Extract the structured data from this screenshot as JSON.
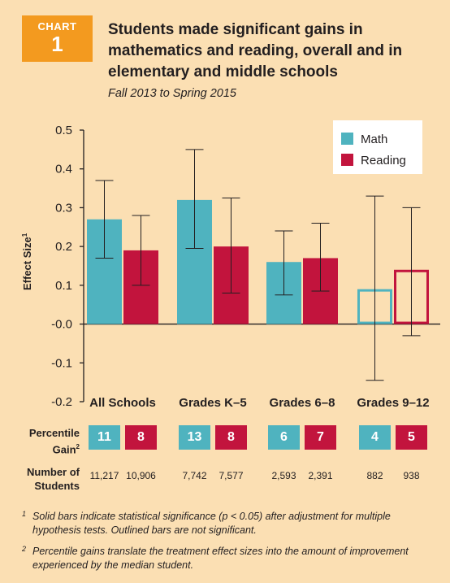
{
  "header": {
    "badge_label": "CHART",
    "badge_number": "1",
    "title": "Students made significant gains in mathematics and reading, overall and in elementary and middle schools",
    "subtitle": "Fall 2013 to Spring 2015"
  },
  "colors": {
    "math": "#4fb3bf",
    "reading": "#c2143d",
    "accent": "#f39a1f"
  },
  "chart_data": {
    "type": "bar",
    "categories": [
      "All Schools",
      "Grades K–5",
      "Grades 6–8",
      "Grades 9–12"
    ],
    "series": [
      {
        "name": "Math",
        "values": [
          0.27,
          0.32,
          0.16,
          0.09
        ],
        "error_low": [
          0.17,
          0.195,
          0.075,
          -0.145
        ],
        "error_high": [
          0.37,
          0.45,
          0.24,
          0.33
        ],
        "significant": [
          true,
          true,
          true,
          false
        ]
      },
      {
        "name": "Reading",
        "values": [
          0.19,
          0.2,
          0.17,
          0.14
        ],
        "error_low": [
          0.1,
          0.08,
          0.085,
          -0.03
        ],
        "error_high": [
          0.28,
          0.325,
          0.26,
          0.3
        ],
        "significant": [
          true,
          true,
          true,
          false
        ]
      }
    ],
    "ylabel": "Effect Size",
    "ylabel_superscript": "1",
    "ylim": [
      -0.2,
      0.5
    ],
    "yticks": [
      "0.5",
      "0.4",
      "0.3",
      "0.2",
      "0.1",
      "-0.0",
      "-0.1",
      "-0.2"
    ],
    "ytick_values": [
      0.5,
      0.4,
      0.3,
      0.2,
      0.1,
      0.0,
      -0.1,
      -0.2
    ],
    "legend_position": "top-right",
    "grid": false
  },
  "percentile_gain": {
    "label_line1": "Percentile",
    "label_line2": "Gain",
    "label_superscript": "2",
    "math": [
      "11",
      "13",
      "6",
      "4"
    ],
    "reading": [
      "8",
      "8",
      "7",
      "5"
    ]
  },
  "students": {
    "label_line1": "Number of",
    "label_line2": "Students",
    "math": [
      "11,217",
      "7,742",
      "2,593",
      "882"
    ],
    "reading": [
      "10,906",
      "7,577",
      "2,391",
      "938"
    ]
  },
  "footnotes": [
    {
      "marker": "1",
      "text": "Solid bars indicate statistical significance (p < 0.05) after adjustment for multiple hypothesis tests. Outlined bars are not significant."
    },
    {
      "marker": "2",
      "text": "Percentile gains translate the treatment effect sizes into the amount of improvement experienced by the median student."
    }
  ]
}
